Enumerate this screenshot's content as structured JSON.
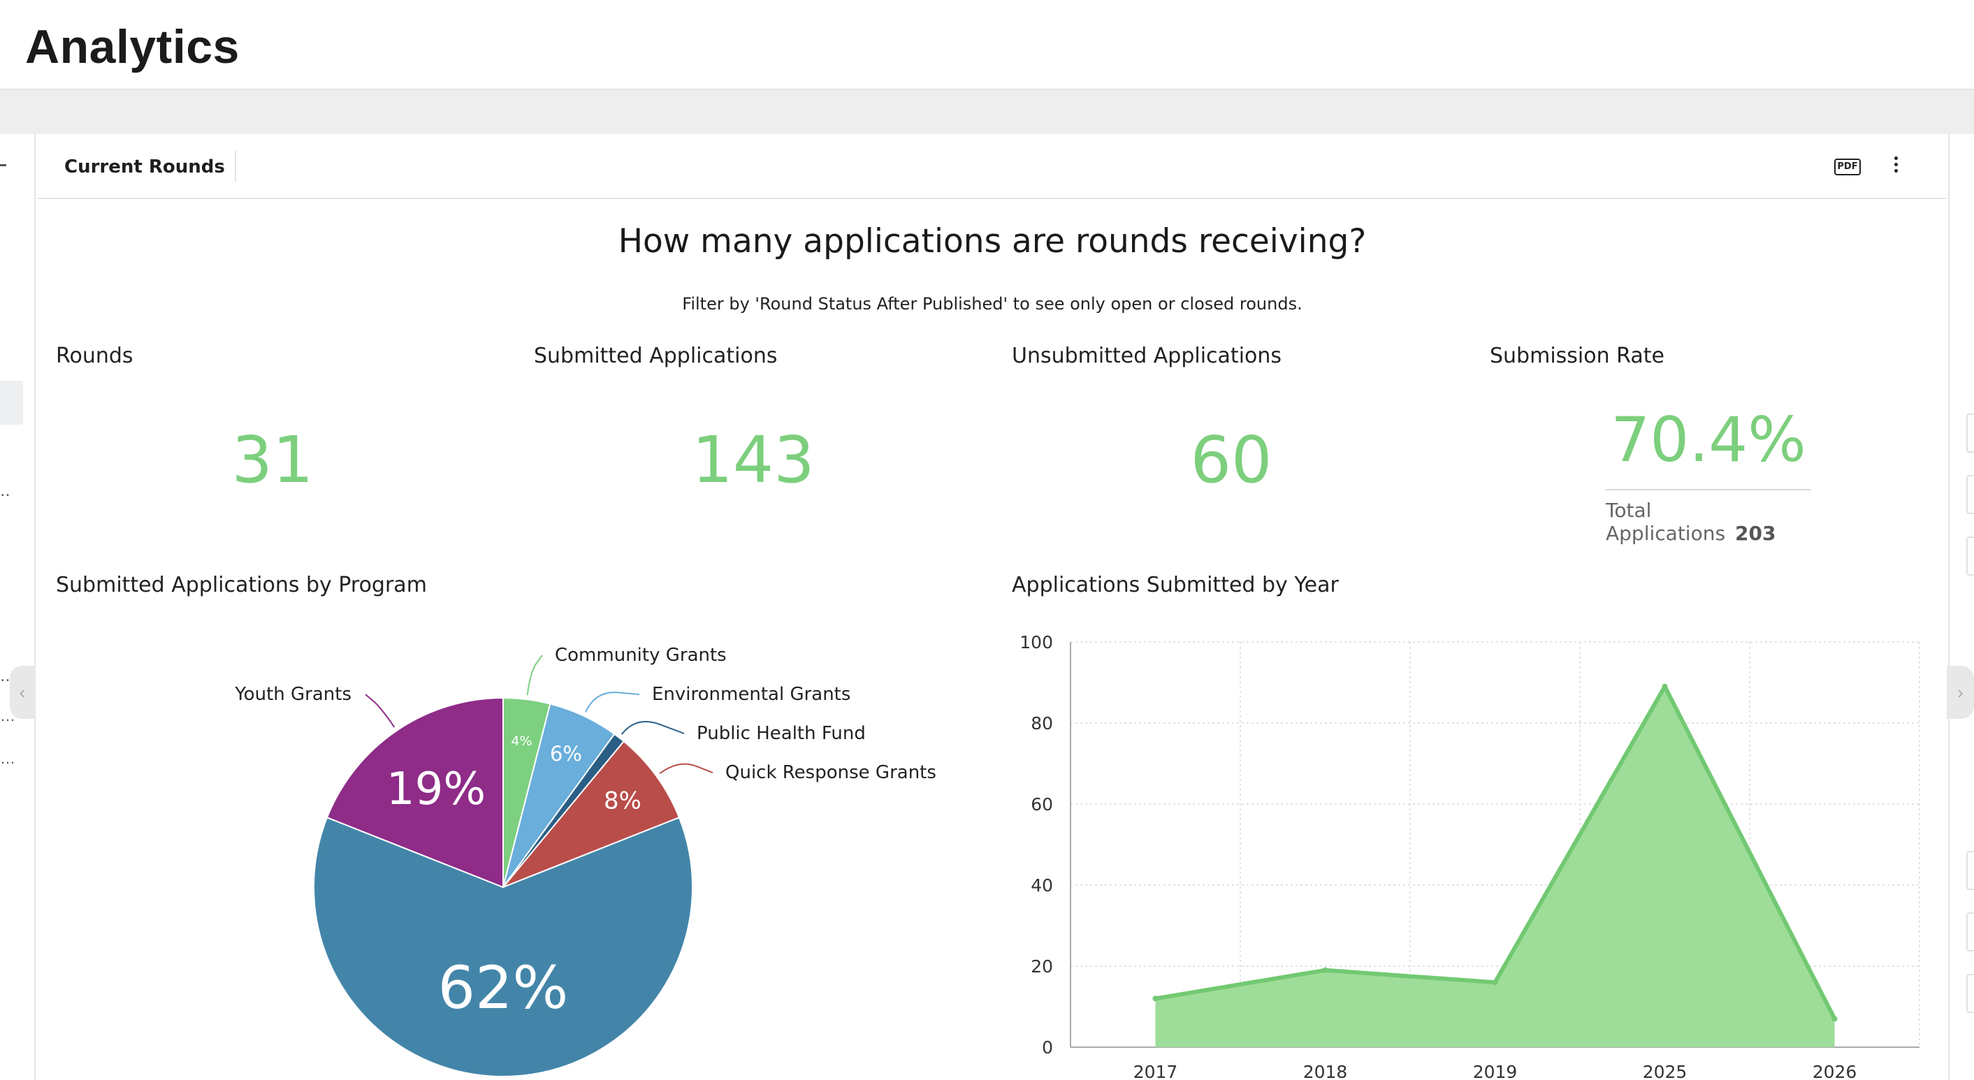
{
  "app": {
    "title": "Analytics"
  },
  "panel": {
    "title": "Current Rounds",
    "pdf_label": "PDF"
  },
  "dashboard": {
    "title": "How many applications are rounds receiving?",
    "subtitle": "Filter by 'Round Status After Published' to see only open or closed rounds."
  },
  "kpis": {
    "rounds": {
      "label": "Rounds",
      "value": "31"
    },
    "submitted": {
      "label": "Submitted Applications",
      "value": "143"
    },
    "unsubmitted": {
      "label": "Unsubmitted Applications",
      "value": "60"
    },
    "rate": {
      "label": "Submission Rate",
      "value": "70.4%",
      "total_label": "Total Applications",
      "total_value": "203"
    }
  },
  "colors": {
    "accent_green": "#7ccf7d",
    "area_fill": "#9edd99",
    "area_line": "#72c972"
  },
  "chart_data": [
    {
      "type": "pie",
      "title": "Submitted Applications by Program",
      "slices": [
        {
          "label": "Community Grants",
          "percent_label": "4%",
          "value": 4,
          "color": "#7dd080"
        },
        {
          "label": "Environmental Grants",
          "percent_label": "6%",
          "value": 6,
          "color": "#6aaedb"
        },
        {
          "label": "Public Health Fund",
          "percent_label": "",
          "value": 1,
          "color": "#2a5e85"
        },
        {
          "label": "Quick Response Grants",
          "percent_label": "8%",
          "value": 8,
          "color": "#b94d4a"
        },
        {
          "label": "",
          "percent_label": "62%",
          "value": 62,
          "color": "#4385a9"
        },
        {
          "label": "Youth Grants",
          "percent_label": "19%",
          "value": 19,
          "color": "#8e2c88"
        }
      ]
    },
    {
      "type": "area",
      "title": "Applications Submitted by Year",
      "categories": [
        "2017",
        "2018",
        "2019",
        "2025",
        "2026"
      ],
      "values": [
        12,
        19,
        16,
        89,
        7
      ],
      "ylim": [
        0,
        100
      ],
      "yticks": [
        "0",
        "20",
        "40",
        "60",
        "80",
        "100"
      ],
      "grid": true
    }
  ]
}
